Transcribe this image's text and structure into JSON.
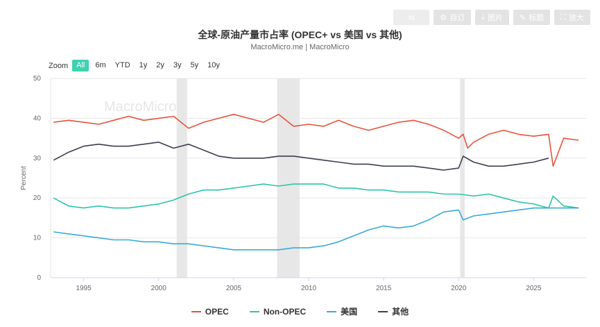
{
  "toolbar": [
    {
      "name": "share-button",
      "label": "",
      "icon": "share-icon"
    },
    {
      "name": "settings-button",
      "label": "自订",
      "icon": "gear-icon"
    },
    {
      "name": "download-image-button",
      "label": "图片",
      "icon": "download-icon"
    },
    {
      "name": "edit-button",
      "label": "标题",
      "icon": "pencil-icon"
    },
    {
      "name": "fullscreen-button",
      "label": "放大",
      "icon": "expand-icon"
    }
  ],
  "zoom": {
    "label": "Zoom",
    "options": [
      "All",
      "6m",
      "YTD",
      "1y",
      "2y",
      "3y",
      "5y",
      "10y"
    ],
    "active": "All"
  },
  "watermark": "MacroMicro",
  "colors": {
    "OPEC": "#e8513b",
    "Non-OPEC": "#2ec4aa",
    "美国": "#39a9d9",
    "其他": "#3a3f4d",
    "recession": "#e7e7e7",
    "active_zoom": "#3fd1b0"
  },
  "chart_data": {
    "type": "line",
    "title": "全球-原油产量市占率 (OPEC+ vs 美国 vs 其他)",
    "subtitle": "MacroMicro.me | MacroMicro",
    "ylabel": "Percent",
    "xlabel": "",
    "ylim": [
      0,
      50
    ],
    "xlim": [
      1992.8,
      2028.5
    ],
    "yticks": [
      0,
      10,
      20,
      30,
      40,
      50
    ],
    "xticks": [
      1995,
      2000,
      2005,
      2010,
      2015,
      2020,
      2025
    ],
    "shaded_periods": [
      [
        2001.2,
        2001.9
      ],
      [
        2007.9,
        2009.4
      ],
      [
        2020.1,
        2020.4
      ]
    ],
    "legend_position": "bottom",
    "series": [
      {
        "name": "OPEC",
        "x": [
          1993,
          1994,
          1995,
          1996,
          1997,
          1998,
          1999,
          2000,
          2001,
          2002,
          2003,
          2004,
          2005,
          2006,
          2007,
          2008,
          2009,
          2010,
          2011,
          2012,
          2013,
          2014,
          2015,
          2016,
          2017,
          2018,
          2019,
          2020,
          2020.3,
          2020.6,
          2021,
          2022,
          2023,
          2024,
          2025,
          2026,
          2026.3,
          2027,
          2028
        ],
        "values": [
          39,
          39.5,
          39,
          38.5,
          39.5,
          40.5,
          39.5,
          40,
          40.5,
          37.5,
          39,
          40,
          41,
          40,
          39,
          41,
          38,
          38.5,
          38,
          39.5,
          38,
          37,
          38,
          39,
          39.5,
          38.5,
          37,
          35,
          36,
          32.5,
          34,
          36,
          37,
          36,
          35.5,
          36,
          28,
          35,
          34.5
        ]
      },
      {
        "name": "Non-OPEC",
        "x": [
          1993,
          1994,
          1995,
          1996,
          1997,
          1998,
          1999,
          2000,
          2001,
          2002,
          2003,
          2004,
          2005,
          2006,
          2007,
          2008,
          2009,
          2010,
          2011,
          2012,
          2013,
          2014,
          2015,
          2016,
          2017,
          2018,
          2019,
          2020,
          2021,
          2022,
          2023,
          2024,
          2025,
          2026,
          2026.3,
          2027,
          2028
        ],
        "values": [
          20,
          18,
          17.5,
          18,
          17.5,
          17.5,
          18,
          18.5,
          19.5,
          21,
          22,
          22,
          22.5,
          23,
          23.5,
          23,
          23.5,
          23.5,
          23.5,
          22.5,
          22.5,
          22,
          22,
          21.5,
          21.5,
          21.5,
          21,
          21,
          20.5,
          21,
          20,
          19,
          18.5,
          17.5,
          20.5,
          18,
          17.5
        ]
      },
      {
        "name": "美国",
        "x": [
          1993,
          1994,
          1995,
          1996,
          1997,
          1998,
          1999,
          2000,
          2001,
          2002,
          2003,
          2004,
          2005,
          2006,
          2007,
          2008,
          2009,
          2010,
          2011,
          2012,
          2013,
          2014,
          2015,
          2016,
          2017,
          2018,
          2019,
          2020,
          2020.3,
          2021,
          2022,
          2023,
          2024,
          2025,
          2026,
          2027,
          2028
        ],
        "values": [
          11.5,
          11,
          10.5,
          10,
          9.5,
          9.5,
          9,
          9,
          8.5,
          8.5,
          8,
          7.5,
          7,
          7,
          7,
          7,
          7.5,
          7.5,
          8,
          9,
          10.5,
          12,
          13,
          12.5,
          13,
          14.5,
          16.5,
          17,
          14.5,
          15.5,
          16,
          16.5,
          17,
          17.5,
          17.5,
          17.5,
          17.5
        ]
      },
      {
        "name": "其他",
        "x": [
          1993,
          1994,
          1995,
          1996,
          1997,
          1998,
          1999,
          2000,
          2001,
          2002,
          2003,
          2004,
          2005,
          2006,
          2007,
          2008,
          2009,
          2010,
          2011,
          2012,
          2013,
          2014,
          2015,
          2016,
          2017,
          2018,
          2019,
          2020,
          2020.3,
          2021,
          2022,
          2023,
          2024,
          2025,
          2026
        ],
        "values": [
          29.5,
          31.5,
          33,
          33.5,
          33,
          33,
          33.5,
          34,
          32.5,
          33.5,
          32,
          30.5,
          30,
          30,
          30,
          30.5,
          30.5,
          30,
          29.5,
          29,
          28.5,
          28.5,
          28,
          28,
          28,
          27.5,
          27,
          27.5,
          30.5,
          29,
          28,
          28,
          28.5,
          29,
          30
        ]
      }
    ]
  }
}
